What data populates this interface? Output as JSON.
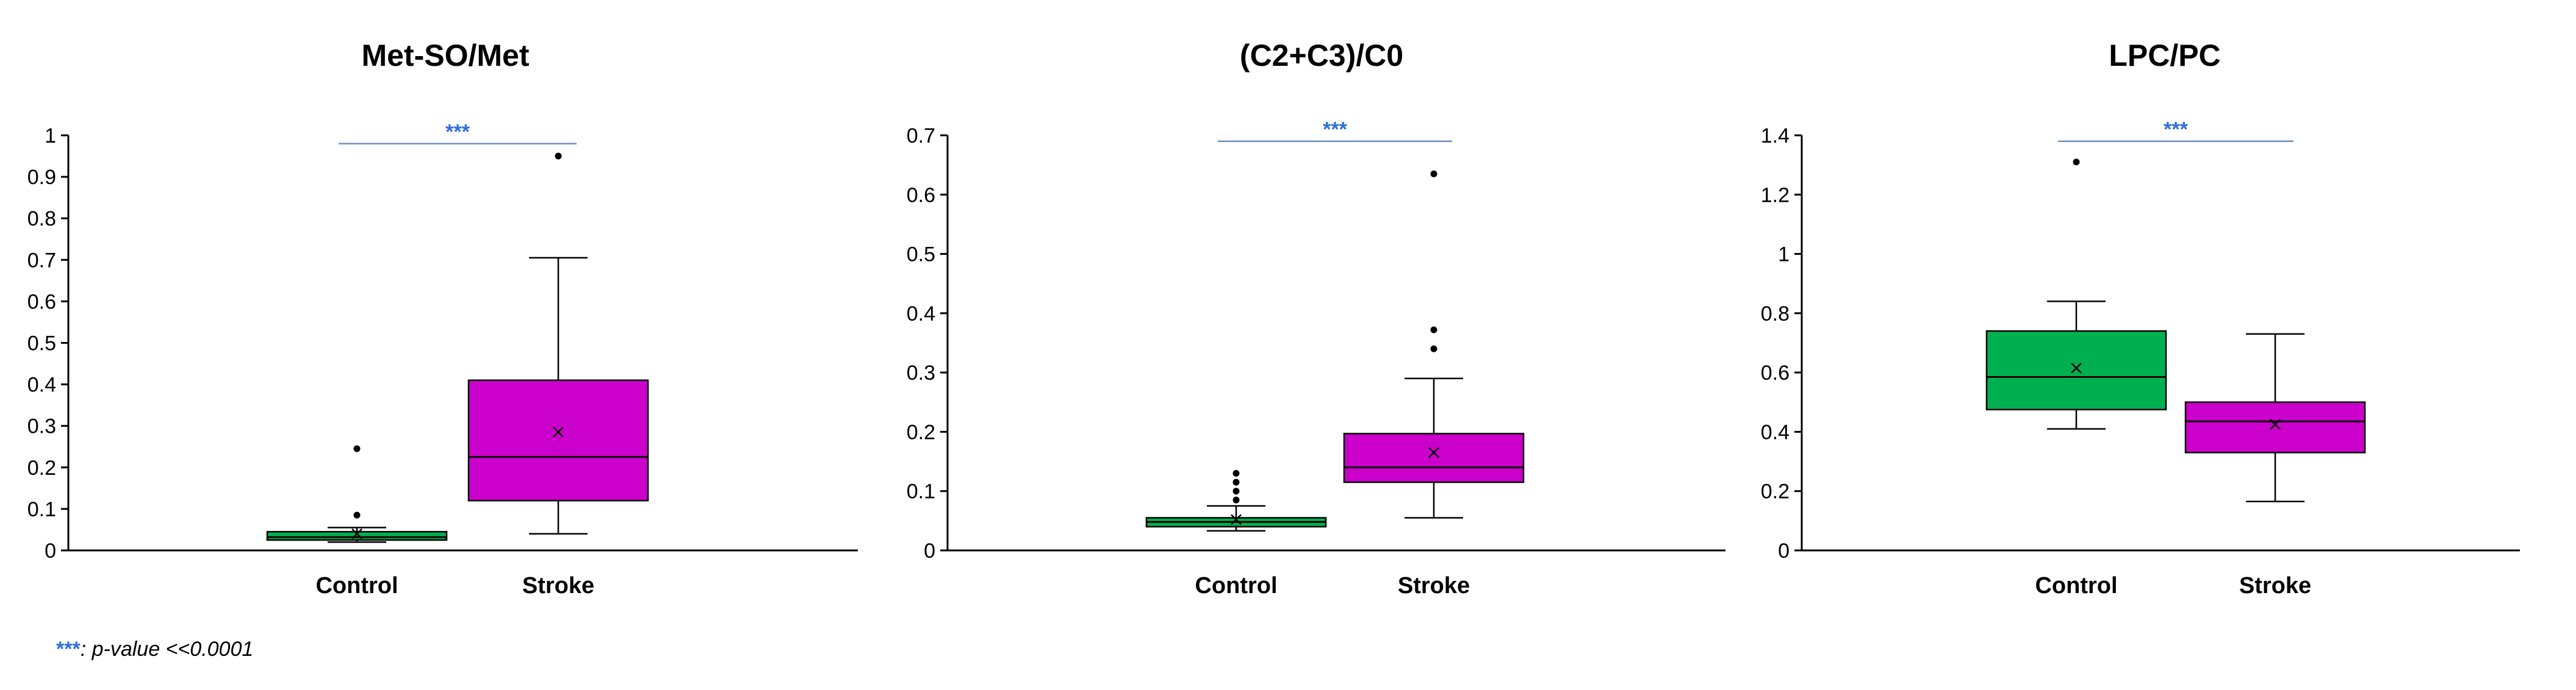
{
  "colors": {
    "control": "#00b050",
    "stroke": "#cc00cc",
    "significance": "#2f6fd6",
    "axis": "#000000",
    "significance_line": "#6f8fbf"
  },
  "footnote": {
    "stars": "***",
    "text": ": p-value <<0.0001"
  },
  "chart_data": [
    {
      "type": "box",
      "title": "Met-SO/Met",
      "categories": [
        "Control",
        "Stroke"
      ],
      "ylim": [
        0,
        1
      ],
      "yticks": [
        "0",
        "0.1",
        "0.2",
        "0.3",
        "0.4",
        "0.5",
        "0.6",
        "0.7",
        "0.8",
        "0.9",
        "1"
      ],
      "ytick_values": [
        0,
        0.1,
        0.2,
        0.3,
        0.4,
        0.5,
        0.6,
        0.7,
        0.8,
        0.9,
        1
      ],
      "significance": "***",
      "significance_y": 0.98,
      "grid": false,
      "boxes": [
        {
          "name": "Control",
          "min": 0.02,
          "q1": 0.025,
          "median": 0.032,
          "q3": 0.045,
          "max": 0.055,
          "mean": 0.04,
          "outliers": [
            0.085,
            0.245
          ]
        },
        {
          "name": "Stroke",
          "min": 0.04,
          "q1": 0.12,
          "median": 0.225,
          "q3": 0.41,
          "max": 0.705,
          "mean": 0.285,
          "outliers": [
            0.95
          ]
        }
      ]
    },
    {
      "type": "box",
      "title": "(C2+C3)/C0",
      "categories": [
        "Control",
        "Stroke"
      ],
      "ylim": [
        0,
        0.7
      ],
      "yticks": [
        "0",
        "0.1",
        "0.2",
        "0.3",
        "0.4",
        "0.5",
        "0.6",
        "0.7"
      ],
      "ytick_values": [
        0,
        0.1,
        0.2,
        0.3,
        0.4,
        0.5,
        0.6,
        0.7
      ],
      "significance": "***",
      "significance_y": 0.69,
      "grid": false,
      "boxes": [
        {
          "name": "Control",
          "min": 0.033,
          "q1": 0.04,
          "median": 0.048,
          "q3": 0.055,
          "max": 0.075,
          "mean": 0.052,
          "outliers": [
            0.085,
            0.1,
            0.115,
            0.13
          ]
        },
        {
          "name": "Stroke",
          "min": 0.055,
          "q1": 0.115,
          "median": 0.14,
          "q3": 0.197,
          "max": 0.29,
          "mean": 0.165,
          "outliers": [
            0.34,
            0.372,
            0.635
          ]
        }
      ]
    },
    {
      "type": "box",
      "title": "LPC/PC",
      "categories": [
        "Control",
        "Stroke"
      ],
      "ylim": [
        0,
        1.4
      ],
      "yticks": [
        "0",
        "0.2",
        "0.4",
        "0.6",
        "0.8",
        "1",
        "1.2",
        "1.4"
      ],
      "ytick_values": [
        0,
        0.2,
        0.4,
        0.6,
        0.8,
        1,
        1.2,
        1.4
      ],
      "significance": "***",
      "significance_y": 1.38,
      "grid": false,
      "boxes": [
        {
          "name": "Control",
          "min": 0.41,
          "q1": 0.475,
          "median": 0.585,
          "q3": 0.74,
          "max": 0.84,
          "mean": 0.615,
          "outliers": [
            1.31
          ]
        },
        {
          "name": "Stroke",
          "min": 0.165,
          "q1": 0.33,
          "median": 0.435,
          "q3": 0.5,
          "max": 0.73,
          "mean": 0.425,
          "outliers": []
        }
      ]
    }
  ]
}
